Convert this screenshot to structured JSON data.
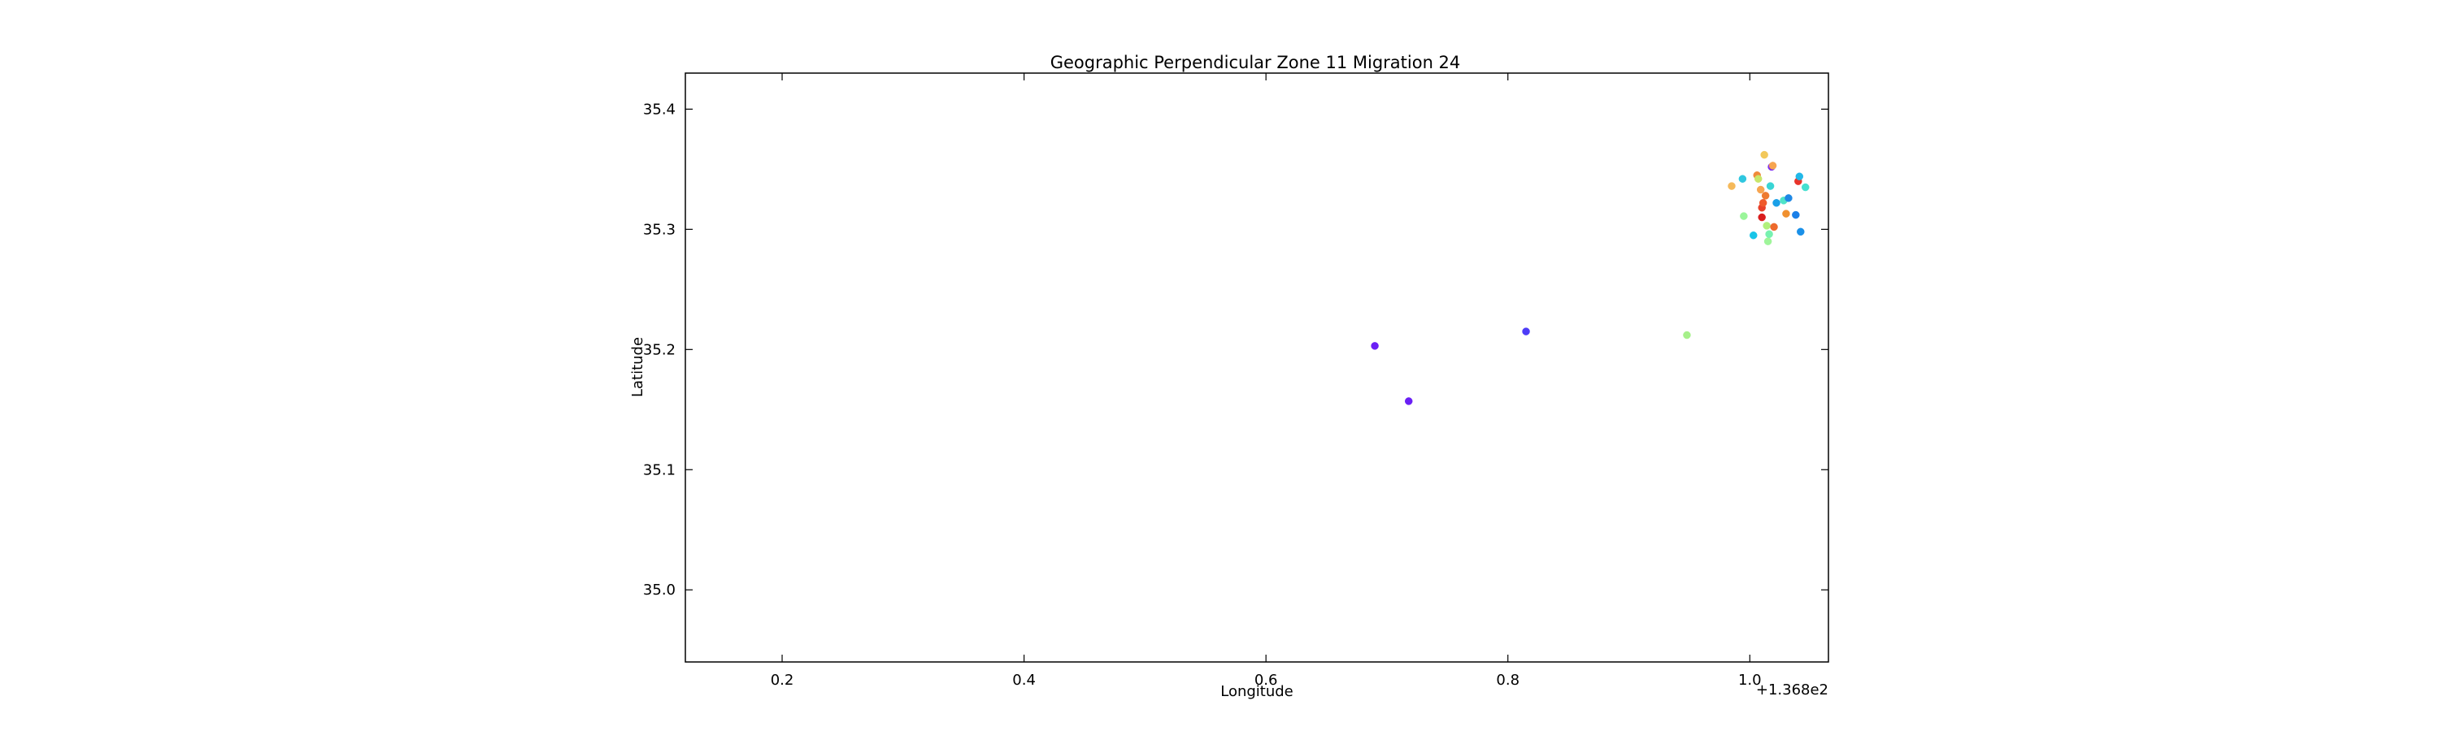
{
  "chart_data": {
    "type": "scatter",
    "title": "Geographic Perpendicular Zone 11 Migration 24",
    "xlabel": "Longitude",
    "ylabel": "Latitude",
    "x_offset_label": "+1.368e2",
    "xlim": [
      0.12,
      1.065
    ],
    "ylim": [
      34.94,
      35.43
    ],
    "x_ticks": [
      0.2,
      0.4,
      0.6,
      0.8,
      1.0
    ],
    "x_tick_labels": [
      "0.2",
      "0.4",
      "0.6",
      "0.8",
      "1.0"
    ],
    "y_ticks": [
      35.0,
      35.1,
      35.2,
      35.3,
      35.4
    ],
    "y_tick_labels": [
      "35.0",
      "35.1",
      "35.2",
      "35.3",
      "35.4"
    ],
    "grid": false,
    "points": [
      {
        "x": 0.69,
        "y": 35.203,
        "color": "#6a1ff5"
      },
      {
        "x": 0.718,
        "y": 35.157,
        "color": "#6a1ff5"
      },
      {
        "x": 0.815,
        "y": 35.215,
        "color": "#4d3cf7"
      },
      {
        "x": 0.948,
        "y": 35.212,
        "color": "#a6f08a"
      },
      {
        "x": 0.985,
        "y": 35.336,
        "color": "#f5b95a"
      },
      {
        "x": 0.994,
        "y": 35.342,
        "color": "#2fc7e0"
      },
      {
        "x": 0.995,
        "y": 35.311,
        "color": "#9af59a"
      },
      {
        "x": 1.003,
        "y": 35.295,
        "color": "#18c5e8"
      },
      {
        "x": 1.006,
        "y": 35.345,
        "color": "#f08a3a"
      },
      {
        "x": 1.007,
        "y": 35.342,
        "color": "#c8e66a"
      },
      {
        "x": 1.009,
        "y": 35.333,
        "color": "#f7a550"
      },
      {
        "x": 1.01,
        "y": 35.318,
        "color": "#e8412a"
      },
      {
        "x": 1.01,
        "y": 35.31,
        "color": "#d91d1d"
      },
      {
        "x": 1.011,
        "y": 35.322,
        "color": "#ef5a2c"
      },
      {
        "x": 1.012,
        "y": 35.362,
        "color": "#f2c85a"
      },
      {
        "x": 1.013,
        "y": 35.328,
        "color": "#ee7a30"
      },
      {
        "x": 1.014,
        "y": 35.303,
        "color": "#b2f07c"
      },
      {
        "x": 1.015,
        "y": 35.29,
        "color": "#9ff59a"
      },
      {
        "x": 1.016,
        "y": 35.296,
        "color": "#78f2b0"
      },
      {
        "x": 1.017,
        "y": 35.336,
        "color": "#39d5d5"
      },
      {
        "x": 1.018,
        "y": 35.352,
        "color": "#7e2ef0"
      },
      {
        "x": 1.019,
        "y": 35.353,
        "color": "#f7a550"
      },
      {
        "x": 1.02,
        "y": 35.302,
        "color": "#ee6a2c"
      },
      {
        "x": 1.022,
        "y": 35.322,
        "color": "#1aa0e8"
      },
      {
        "x": 1.028,
        "y": 35.324,
        "color": "#4fe3c8"
      },
      {
        "x": 1.03,
        "y": 35.313,
        "color": "#f0902f"
      },
      {
        "x": 1.032,
        "y": 35.326,
        "color": "#1e88e5"
      },
      {
        "x": 1.038,
        "y": 35.312,
        "color": "#1a7fe8"
      },
      {
        "x": 1.04,
        "y": 35.34,
        "color": "#e8342a"
      },
      {
        "x": 1.041,
        "y": 35.344,
        "color": "#22b8e8"
      },
      {
        "x": 1.042,
        "y": 35.298,
        "color": "#1a90e8"
      },
      {
        "x": 1.046,
        "y": 35.335,
        "color": "#45e0d0"
      }
    ]
  }
}
